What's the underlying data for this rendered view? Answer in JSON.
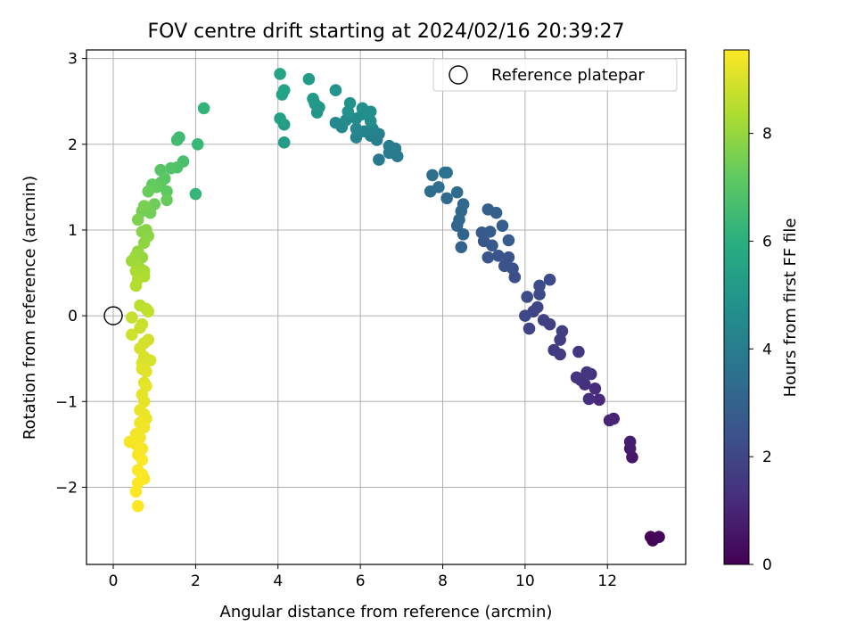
{
  "chart_data": {
    "type": "scatter",
    "title": "FOV centre drift starting at 2024/02/16 20:39:27",
    "xlabel": "Angular distance from reference (arcmin)",
    "ylabel": "Rotation from reference (arcmin)",
    "xlim": [
      -0.65,
      13.9
    ],
    "ylim": [
      -2.9,
      3.1
    ],
    "xticks": [
      0,
      2,
      4,
      6,
      8,
      10,
      12
    ],
    "yticks": [
      -2,
      -1,
      0,
      1,
      2,
      3
    ],
    "ytick_labels": [
      "−2",
      "−1",
      "0",
      "1",
      "2",
      "3"
    ],
    "grid": true,
    "legend": {
      "placement": "top-right",
      "entries": [
        {
          "label": "Reference platepar",
          "marker": "open-circle"
        }
      ]
    },
    "reference_point": {
      "x": 0,
      "y": 0
    },
    "colorbar": {
      "label": "Hours from first FF file",
      "colormap": "viridis",
      "range": [
        0,
        9.55
      ],
      "ticks": [
        0,
        2,
        4,
        6,
        8
      ]
    },
    "series": [
      {
        "points": [
          {
            "x": 13.05,
            "y": -2.58,
            "t": 0.05
          },
          {
            "x": 13.1,
            "y": -2.62,
            "t": 0.1
          },
          {
            "x": 13.25,
            "y": -2.58,
            "t": 0.15
          },
          {
            "x": 12.6,
            "y": -1.65,
            "t": 0.6
          },
          {
            "x": 12.55,
            "y": -1.55,
            "t": 0.7
          },
          {
            "x": 12.55,
            "y": -1.47,
            "t": 0.75
          },
          {
            "x": 12.15,
            "y": -1.2,
            "t": 0.95
          },
          {
            "x": 12.05,
            "y": -1.22,
            "t": 1.0
          },
          {
            "x": 11.8,
            "y": -0.98,
            "t": 1.15
          },
          {
            "x": 11.7,
            "y": -0.85,
            "t": 1.2
          },
          {
            "x": 11.55,
            "y": -0.97,
            "t": 1.25
          },
          {
            "x": 11.45,
            "y": -0.8,
            "t": 1.3
          },
          {
            "x": 11.35,
            "y": -0.75,
            "t": 1.35
          },
          {
            "x": 11.6,
            "y": -0.68,
            "t": 1.4
          },
          {
            "x": 11.25,
            "y": -0.72,
            "t": 1.45
          },
          {
            "x": 11.5,
            "y": -0.66,
            "t": 1.5
          },
          {
            "x": 11.3,
            "y": -0.42,
            "t": 1.55
          },
          {
            "x": 10.85,
            "y": -0.45,
            "t": 1.6
          },
          {
            "x": 10.7,
            "y": -0.4,
            "t": 1.65
          },
          {
            "x": 10.85,
            "y": -0.28,
            "t": 1.7
          },
          {
            "x": 10.9,
            "y": -0.18,
            "t": 1.75
          },
          {
            "x": 10.6,
            "y": -0.1,
            "t": 1.8
          },
          {
            "x": 10.45,
            "y": -0.05,
            "t": 1.85
          },
          {
            "x": 10.1,
            "y": -0.15,
            "t": 1.9
          },
          {
            "x": 10.2,
            "y": 0.05,
            "t": 1.95
          },
          {
            "x": 10.3,
            "y": 0.1,
            "t": 2.0
          },
          {
            "x": 10.0,
            "y": 0.0,
            "t": 2.05
          },
          {
            "x": 10.35,
            "y": 0.25,
            "t": 2.1
          },
          {
            "x": 10.05,
            "y": 0.22,
            "t": 2.15
          },
          {
            "x": 10.6,
            "y": 0.42,
            "t": 2.2
          },
          {
            "x": 10.35,
            "y": 0.35,
            "t": 2.25
          },
          {
            "x": 9.75,
            "y": 0.45,
            "t": 2.3
          },
          {
            "x": 9.7,
            "y": 0.55,
            "t": 2.35
          },
          {
            "x": 9.5,
            "y": 0.58,
            "t": 2.4
          },
          {
            "x": 9.6,
            "y": 0.68,
            "t": 2.45
          },
          {
            "x": 9.35,
            "y": 0.7,
            "t": 2.5
          },
          {
            "x": 9.1,
            "y": 0.68,
            "t": 2.55
          },
          {
            "x": 9.0,
            "y": 0.87,
            "t": 2.6
          },
          {
            "x": 9.2,
            "y": 0.82,
            "t": 2.65
          },
          {
            "x": 8.95,
            "y": 0.97,
            "t": 2.7
          },
          {
            "x": 9.15,
            "y": 0.98,
            "t": 2.75
          },
          {
            "x": 9.6,
            "y": 0.88,
            "t": 2.8
          },
          {
            "x": 9.45,
            "y": 1.05,
            "t": 2.85
          },
          {
            "x": 9.1,
            "y": 1.24,
            "t": 2.9
          },
          {
            "x": 9.3,
            "y": 1.2,
            "t": 2.95
          },
          {
            "x": 8.45,
            "y": 0.8,
            "t": 3.0
          },
          {
            "x": 8.5,
            "y": 0.95,
            "t": 3.05
          },
          {
            "x": 8.35,
            "y": 1.05,
            "t": 3.1
          },
          {
            "x": 8.4,
            "y": 1.12,
            "t": 3.15
          },
          {
            "x": 8.45,
            "y": 1.22,
            "t": 3.2
          },
          {
            "x": 8.5,
            "y": 1.3,
            "t": 3.25
          },
          {
            "x": 8.1,
            "y": 1.37,
            "t": 3.3
          },
          {
            "x": 8.35,
            "y": 1.44,
            "t": 3.35
          },
          {
            "x": 7.7,
            "y": 1.45,
            "t": 3.4
          },
          {
            "x": 7.9,
            "y": 1.5,
            "t": 3.45
          },
          {
            "x": 7.75,
            "y": 1.64,
            "t": 3.5
          },
          {
            "x": 8.05,
            "y": 1.67,
            "t": 3.55
          },
          {
            "x": 8.1,
            "y": 1.67,
            "t": 3.6
          },
          {
            "x": 6.45,
            "y": 1.82,
            "t": 3.8
          },
          {
            "x": 6.9,
            "y": 1.86,
            "t": 3.85
          },
          {
            "x": 6.7,
            "y": 1.9,
            "t": 3.9
          },
          {
            "x": 6.85,
            "y": 1.95,
            "t": 3.95
          },
          {
            "x": 6.7,
            "y": 1.98,
            "t": 4.0
          },
          {
            "x": 6.4,
            "y": 2.05,
            "t": 4.05
          },
          {
            "x": 6.25,
            "y": 2.1,
            "t": 4.1
          },
          {
            "x": 6.45,
            "y": 2.12,
            "t": 4.15
          },
          {
            "x": 5.9,
            "y": 2.08,
            "t": 4.2
          },
          {
            "x": 6.1,
            "y": 2.15,
            "t": 4.25
          },
          {
            "x": 6.3,
            "y": 2.18,
            "t": 4.3
          },
          {
            "x": 5.9,
            "y": 2.18,
            "t": 4.35
          },
          {
            "x": 5.55,
            "y": 2.2,
            "t": 4.4
          },
          {
            "x": 5.4,
            "y": 2.25,
            "t": 4.45
          },
          {
            "x": 5.65,
            "y": 2.28,
            "t": 4.5
          },
          {
            "x": 5.9,
            "y": 2.3,
            "t": 4.55
          },
          {
            "x": 6.25,
            "y": 2.27,
            "t": 4.6
          },
          {
            "x": 6.05,
            "y": 2.35,
            "t": 4.65
          },
          {
            "x": 6.25,
            "y": 2.38,
            "t": 4.7
          },
          {
            "x": 6.05,
            "y": 2.42,
            "t": 4.75
          },
          {
            "x": 5.7,
            "y": 2.38,
            "t": 4.8
          },
          {
            "x": 5.75,
            "y": 2.48,
            "t": 4.85
          },
          {
            "x": 5.4,
            "y": 2.63,
            "t": 4.9
          },
          {
            "x": 4.95,
            "y": 2.37,
            "t": 5.0
          },
          {
            "x": 5.0,
            "y": 2.43,
            "t": 5.05
          },
          {
            "x": 4.9,
            "y": 2.47,
            "t": 5.1
          },
          {
            "x": 4.85,
            "y": 2.53,
            "t": 5.15
          },
          {
            "x": 4.75,
            "y": 2.76,
            "t": 5.2
          },
          {
            "x": 4.15,
            "y": 2.02,
            "t": 5.3
          },
          {
            "x": 4.15,
            "y": 2.23,
            "t": 5.35
          },
          {
            "x": 4.05,
            "y": 2.3,
            "t": 5.4
          },
          {
            "x": 4.1,
            "y": 2.58,
            "t": 5.45
          },
          {
            "x": 4.15,
            "y": 2.63,
            "t": 5.5
          },
          {
            "x": 4.05,
            "y": 2.82,
            "t": 5.55
          },
          {
            "x": 2.2,
            "y": 2.42,
            "t": 6.2
          },
          {
            "x": 2.0,
            "y": 1.42,
            "t": 6.3
          },
          {
            "x": 2.05,
            "y": 2.0,
            "t": 6.35
          },
          {
            "x": 1.6,
            "y": 2.08,
            "t": 6.5
          },
          {
            "x": 1.55,
            "y": 2.05,
            "t": 6.55
          },
          {
            "x": 1.7,
            "y": 1.8,
            "t": 6.7
          },
          {
            "x": 1.55,
            "y": 1.73,
            "t": 6.8
          },
          {
            "x": 1.4,
            "y": 1.72,
            "t": 6.9
          },
          {
            "x": 1.15,
            "y": 1.7,
            "t": 7.0
          },
          {
            "x": 1.25,
            "y": 1.6,
            "t": 7.05
          },
          {
            "x": 1.15,
            "y": 1.55,
            "t": 7.1
          },
          {
            "x": 1.3,
            "y": 1.45,
            "t": 7.15
          },
          {
            "x": 0.95,
            "y": 1.53,
            "t": 7.2
          },
          {
            "x": 1.05,
            "y": 1.5,
            "t": 7.25
          },
          {
            "x": 1.3,
            "y": 1.35,
            "t": 7.3
          },
          {
            "x": 0.85,
            "y": 1.45,
            "t": 7.35
          },
          {
            "x": 1.0,
            "y": 1.3,
            "t": 7.4
          },
          {
            "x": 0.9,
            "y": 1.2,
            "t": 7.45
          },
          {
            "x": 0.7,
            "y": 1.22,
            "t": 7.5
          },
          {
            "x": 0.75,
            "y": 1.28,
            "t": 7.55
          },
          {
            "x": 0.6,
            "y": 1.12,
            "t": 7.65
          },
          {
            "x": 0.8,
            "y": 1.0,
            "t": 7.75
          },
          {
            "x": 0.7,
            "y": 0.98,
            "t": 7.8
          },
          {
            "x": 0.85,
            "y": 0.93,
            "t": 7.85
          },
          {
            "x": 0.75,
            "y": 0.85,
            "t": 7.9
          },
          {
            "x": 0.6,
            "y": 0.75,
            "t": 7.95
          },
          {
            "x": 0.7,
            "y": 0.68,
            "t": 8.0
          },
          {
            "x": 0.55,
            "y": 0.7,
            "t": 8.05
          },
          {
            "x": 0.45,
            "y": 0.64,
            "t": 8.1
          },
          {
            "x": 0.55,
            "y": 0.62,
            "t": 8.15
          },
          {
            "x": 0.65,
            "y": 0.55,
            "t": 8.2
          },
          {
            "x": 0.75,
            "y": 0.52,
            "t": 8.25
          },
          {
            "x": 0.55,
            "y": 0.52,
            "t": 8.3
          },
          {
            "x": 0.75,
            "y": 0.46,
            "t": 8.35
          },
          {
            "x": 0.6,
            "y": 0.43,
            "t": 8.4
          },
          {
            "x": 0.55,
            "y": 0.35,
            "t": 8.45
          },
          {
            "x": 0.65,
            "y": 0.12,
            "t": 8.55
          },
          {
            "x": 0.8,
            "y": 0.08,
            "t": 8.6
          },
          {
            "x": 0.85,
            "y": 0.05,
            "t": 8.65
          },
          {
            "x": 0.45,
            "y": -0.02,
            "t": 8.7
          },
          {
            "x": 0.7,
            "y": -0.1,
            "t": 8.75
          },
          {
            "x": 0.65,
            "y": -0.14,
            "t": 8.8
          },
          {
            "x": 0.45,
            "y": -0.22,
            "t": 8.85
          },
          {
            "x": 0.85,
            "y": -0.28,
            "t": 8.9
          },
          {
            "x": 0.75,
            "y": -0.32,
            "t": 8.92
          },
          {
            "x": 0.65,
            "y": -0.38,
            "t": 8.95
          },
          {
            "x": 0.75,
            "y": -0.48,
            "t": 9.0
          },
          {
            "x": 0.9,
            "y": -0.52,
            "t": 9.02
          },
          {
            "x": 0.7,
            "y": -0.55,
            "t": 9.05
          },
          {
            "x": 0.7,
            "y": -0.62,
            "t": 9.1
          },
          {
            "x": 0.8,
            "y": -0.65,
            "t": 9.12
          },
          {
            "x": 0.75,
            "y": -0.78,
            "t": 9.15
          },
          {
            "x": 0.8,
            "y": -0.82,
            "t": 9.18
          },
          {
            "x": 0.7,
            "y": -0.92,
            "t": 9.2
          },
          {
            "x": 0.75,
            "y": -1.0,
            "t": 9.22
          },
          {
            "x": 0.65,
            "y": -1.1,
            "t": 9.25
          },
          {
            "x": 0.75,
            "y": -1.15,
            "t": 9.28
          },
          {
            "x": 0.8,
            "y": -1.2,
            "t": 9.3
          },
          {
            "x": 0.65,
            "y": -1.25,
            "t": 9.32
          },
          {
            "x": 0.75,
            "y": -1.3,
            "t": 9.35
          },
          {
            "x": 0.55,
            "y": -1.38,
            "t": 9.38
          },
          {
            "x": 0.65,
            "y": -1.42,
            "t": 9.4
          },
          {
            "x": 0.4,
            "y": -1.47,
            "t": 9.42
          },
          {
            "x": 0.55,
            "y": -1.5,
            "t": 9.44
          },
          {
            "x": 0.7,
            "y": -1.55,
            "t": 9.46
          },
          {
            "x": 0.6,
            "y": -1.62,
            "t": 9.48
          },
          {
            "x": 0.7,
            "y": -1.68,
            "t": 9.5
          },
          {
            "x": 0.6,
            "y": -1.8,
            "t": 9.51
          },
          {
            "x": 0.7,
            "y": -1.85,
            "t": 9.52
          },
          {
            "x": 0.75,
            "y": -1.9,
            "t": 9.53
          },
          {
            "x": 0.6,
            "y": -1.95,
            "t": 9.54
          },
          {
            "x": 0.55,
            "y": -2.05,
            "t": 9.55
          },
          {
            "x": 0.6,
            "y": -2.22,
            "t": 9.55
          }
        ]
      }
    ]
  }
}
